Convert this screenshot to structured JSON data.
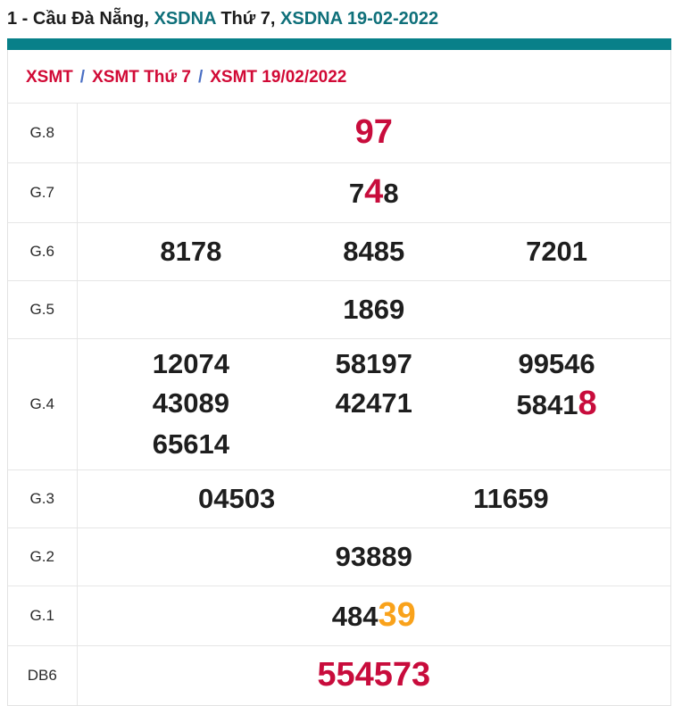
{
  "colors": {
    "teal_bar": "#088089",
    "teal_link": "#0f707a",
    "number_red": "#c80c3c",
    "breadcrumb_red": "#d10a36",
    "highlight_orange": "#f9a21b",
    "separator_blue": "#4a6fc4",
    "border_gray": "#e6e6e6"
  },
  "title": {
    "parts": [
      {
        "text": "1 - Cầu Đà Nẵng, ",
        "style": "dark"
      },
      {
        "text": "XSDNA",
        "style": "teal"
      },
      {
        "text": " Thứ 7, ",
        "style": "dark"
      },
      {
        "text": "XSDNA 19-02-2022",
        "style": "teal"
      }
    ]
  },
  "breadcrumb": {
    "separator": "/",
    "items": [
      {
        "label": "XSMT"
      },
      {
        "label": "XSMT Thứ 7"
      },
      {
        "label": "XSMT 19/02/2022"
      }
    ]
  },
  "results_table": {
    "rows": [
      {
        "label": "G.8",
        "columns": 1,
        "cells": [
          [
            {
              "text": "97",
              "style": "red"
            }
          ]
        ]
      },
      {
        "label": "G.7",
        "columns": 1,
        "cells": [
          [
            {
              "text": "7",
              "style": "normal"
            },
            {
              "text": "4",
              "style": "red"
            },
            {
              "text": "8",
              "style": "normal"
            }
          ]
        ]
      },
      {
        "label": "G.6",
        "columns": 3,
        "cells": [
          [
            {
              "text": "8178",
              "style": "normal"
            }
          ],
          [
            {
              "text": "8485",
              "style": "normal"
            }
          ],
          [
            {
              "text": "7201",
              "style": "normal"
            }
          ]
        ]
      },
      {
        "label": "G.5",
        "columns": 1,
        "cells": [
          [
            {
              "text": "1869",
              "style": "normal"
            }
          ]
        ]
      },
      {
        "label": "G.4",
        "columns": 3,
        "cells": [
          [
            {
              "text": "12074",
              "style": "normal"
            }
          ],
          [
            {
              "text": "58197",
              "style": "normal"
            }
          ],
          [
            {
              "text": "99546",
              "style": "normal"
            }
          ],
          [
            {
              "text": "43089",
              "style": "normal"
            }
          ],
          [
            {
              "text": "42471",
              "style": "normal"
            }
          ],
          [
            {
              "text": "5841",
              "style": "normal"
            },
            {
              "text": "8",
              "style": "red"
            }
          ],
          [
            {
              "text": "65614",
              "style": "normal"
            }
          ]
        ]
      },
      {
        "label": "G.3",
        "columns": 2,
        "cells": [
          [
            {
              "text": "04503",
              "style": "normal"
            }
          ],
          [
            {
              "text": "11659",
              "style": "normal"
            }
          ]
        ]
      },
      {
        "label": "G.2",
        "columns": 1,
        "cells": [
          [
            {
              "text": "93889",
              "style": "normal"
            }
          ]
        ]
      },
      {
        "label": "G.1",
        "columns": 1,
        "cells": [
          [
            {
              "text": "484",
              "style": "normal"
            },
            {
              "text": "39",
              "style": "orange"
            }
          ]
        ]
      },
      {
        "label": "DB6",
        "columns": 1,
        "cells": [
          [
            {
              "text": "554573",
              "style": "red"
            }
          ]
        ]
      }
    ]
  }
}
